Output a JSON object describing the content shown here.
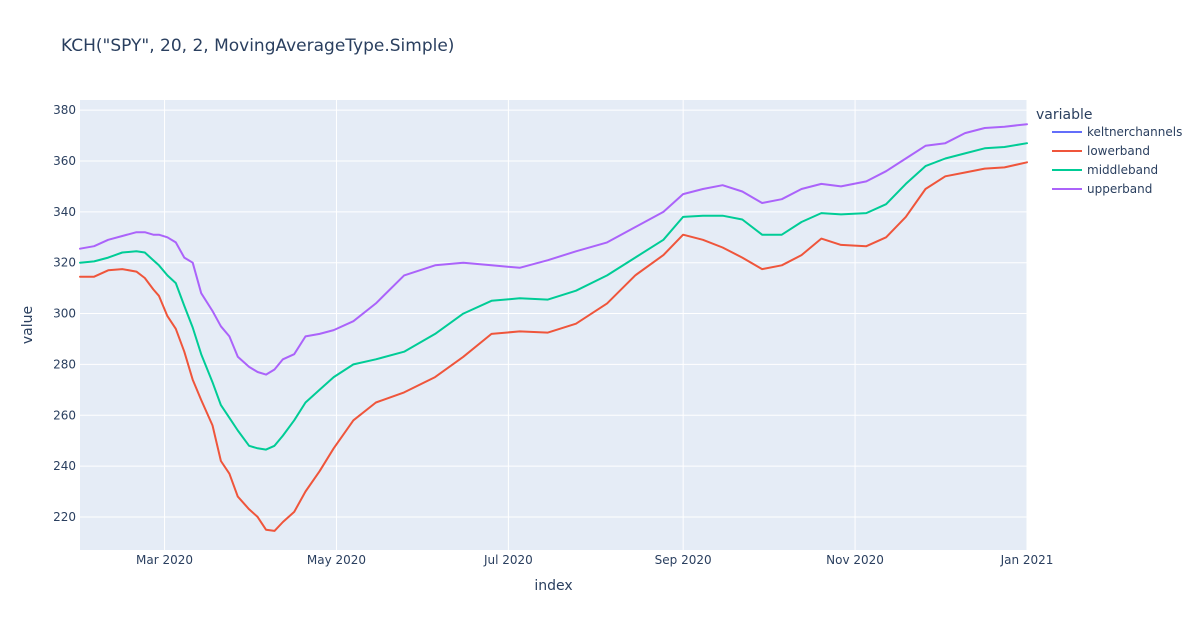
{
  "chart_data": {
    "type": "line",
    "title": "KCH(\"SPY\", 20, 2, MovingAverageType.Simple)",
    "xlabel": "index",
    "ylabel": "value",
    "xlim": [
      "2020-01-31",
      "2021-01-01"
    ],
    "ylim": [
      207,
      384
    ],
    "grid": true,
    "legend_title": "variable",
    "legend_position": "right",
    "x_ticks": [
      {
        "date": "2020-03-01",
        "label": "Mar 2020"
      },
      {
        "date": "2020-05-01",
        "label": "May 2020"
      },
      {
        "date": "2020-07-01",
        "label": "Jul 2020"
      },
      {
        "date": "2020-09-01",
        "label": "Sep 2020"
      },
      {
        "date": "2020-11-01",
        "label": "Nov 2020"
      },
      {
        "date": "2021-01-01",
        "label": "Jan 2021"
      }
    ],
    "y_ticks": [
      220,
      240,
      260,
      280,
      300,
      320,
      340,
      360,
      380
    ],
    "series": [
      {
        "name": "keltnerchannels",
        "color": "#636efa",
        "x": [],
        "values": []
      },
      {
        "name": "lowerband",
        "color": "#ef553b",
        "x": [
          "2020-01-31",
          "2020-02-05",
          "2020-02-10",
          "2020-02-15",
          "2020-02-20",
          "2020-02-23",
          "2020-02-26",
          "2020-02-28",
          "2020-03-02",
          "2020-03-05",
          "2020-03-08",
          "2020-03-11",
          "2020-03-14",
          "2020-03-18",
          "2020-03-21",
          "2020-03-24",
          "2020-03-27",
          "2020-03-31",
          "2020-04-03",
          "2020-04-06",
          "2020-04-09",
          "2020-04-12",
          "2020-04-16",
          "2020-04-20",
          "2020-04-25",
          "2020-04-30",
          "2020-05-07",
          "2020-05-15",
          "2020-05-25",
          "2020-06-05",
          "2020-06-15",
          "2020-06-25",
          "2020-07-05",
          "2020-07-15",
          "2020-07-25",
          "2020-08-05",
          "2020-08-15",
          "2020-08-25",
          "2020-09-01",
          "2020-09-08",
          "2020-09-15",
          "2020-09-22",
          "2020-09-29",
          "2020-10-06",
          "2020-10-13",
          "2020-10-20",
          "2020-10-27",
          "2020-11-05",
          "2020-11-12",
          "2020-11-19",
          "2020-11-26",
          "2020-12-03",
          "2020-12-10",
          "2020-12-17",
          "2020-12-24",
          "2021-01-01"
        ],
        "values": [
          314.5,
          314.5,
          317,
          317.5,
          316.5,
          314,
          309.5,
          307,
          299,
          294,
          285,
          274,
          266,
          256,
          242,
          237,
          228,
          223,
          220,
          215,
          214.5,
          218,
          222,
          230,
          238,
          247,
          258,
          265,
          269,
          275,
          283,
          292,
          293,
          292.5,
          296,
          304,
          315,
          323,
          331,
          329,
          326,
          322,
          317.5,
          319,
          323,
          329.5,
          327,
          326.5,
          330,
          338,
          349,
          354,
          355.5,
          357,
          357.5,
          359.5
        ]
      },
      {
        "name": "middleband",
        "color": "#00cc96",
        "x": [
          "2020-01-31",
          "2020-02-05",
          "2020-02-10",
          "2020-02-15",
          "2020-02-20",
          "2020-02-23",
          "2020-02-26",
          "2020-02-28",
          "2020-03-02",
          "2020-03-05",
          "2020-03-08",
          "2020-03-11",
          "2020-03-14",
          "2020-03-18",
          "2020-03-21",
          "2020-03-24",
          "2020-03-27",
          "2020-03-31",
          "2020-04-03",
          "2020-04-06",
          "2020-04-09",
          "2020-04-12",
          "2020-04-16",
          "2020-04-20",
          "2020-04-25",
          "2020-04-30",
          "2020-05-07",
          "2020-05-15",
          "2020-05-25",
          "2020-06-05",
          "2020-06-15",
          "2020-06-25",
          "2020-07-05",
          "2020-07-15",
          "2020-07-25",
          "2020-08-05",
          "2020-08-15",
          "2020-08-25",
          "2020-09-01",
          "2020-09-08",
          "2020-09-15",
          "2020-09-22",
          "2020-09-29",
          "2020-10-06",
          "2020-10-13",
          "2020-10-20",
          "2020-10-27",
          "2020-11-05",
          "2020-11-12",
          "2020-11-19",
          "2020-11-26",
          "2020-12-03",
          "2020-12-10",
          "2020-12-17",
          "2020-12-24",
          "2021-01-01"
        ],
        "values": [
          320,
          320.5,
          322,
          324,
          324.5,
          324,
          321,
          319,
          315,
          312,
          303,
          294.5,
          284,
          273,
          264,
          259,
          254,
          248,
          247,
          246.5,
          248,
          252,
          258,
          265,
          270,
          275,
          280,
          282,
          285,
          292,
          300,
          305,
          306,
          305.5,
          309,
          315,
          322,
          329,
          338,
          338.5,
          338.5,
          337,
          331,
          331,
          336,
          339.5,
          339,
          339.5,
          343,
          351,
          358,
          361,
          363,
          365,
          365.5,
          367
        ]
      },
      {
        "name": "upperband",
        "color": "#ab63fa",
        "x": [
          "2020-01-31",
          "2020-02-05",
          "2020-02-10",
          "2020-02-15",
          "2020-02-20",
          "2020-02-23",
          "2020-02-26",
          "2020-02-28",
          "2020-03-02",
          "2020-03-05",
          "2020-03-08",
          "2020-03-11",
          "2020-03-14",
          "2020-03-18",
          "2020-03-21",
          "2020-03-24",
          "2020-03-27",
          "2020-03-31",
          "2020-04-03",
          "2020-04-06",
          "2020-04-09",
          "2020-04-12",
          "2020-04-16",
          "2020-04-20",
          "2020-04-25",
          "2020-04-30",
          "2020-05-07",
          "2020-05-15",
          "2020-05-25",
          "2020-06-05",
          "2020-06-15",
          "2020-06-25",
          "2020-07-05",
          "2020-07-15",
          "2020-07-25",
          "2020-08-05",
          "2020-08-15",
          "2020-08-25",
          "2020-09-01",
          "2020-09-08",
          "2020-09-15",
          "2020-09-22",
          "2020-09-29",
          "2020-10-06",
          "2020-10-13",
          "2020-10-20",
          "2020-10-27",
          "2020-11-05",
          "2020-11-12",
          "2020-11-19",
          "2020-11-26",
          "2020-12-03",
          "2020-12-10",
          "2020-12-17",
          "2020-12-24",
          "2021-01-01"
        ],
        "values": [
          325.5,
          326.5,
          329,
          330.5,
          332,
          332,
          331,
          331,
          330,
          328,
          322,
          320,
          308,
          301,
          295,
          291,
          283,
          279,
          277,
          276,
          278,
          282,
          284,
          291,
          292,
          293.5,
          297,
          304,
          315,
          319,
          320,
          319,
          318,
          321,
          324.5,
          328,
          334,
          340,
          347,
          349,
          350.5,
          348,
          343.5,
          345,
          349,
          351,
          350,
          352,
          356,
          361,
          366,
          367,
          371,
          373,
          373.5,
          374.5
        ]
      }
    ]
  }
}
